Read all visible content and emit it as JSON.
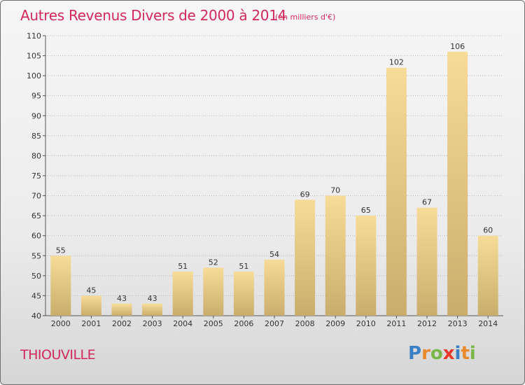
{
  "title": "Autres Revenus Divers de 2000 à 2014",
  "subtitle": "(en milliers d'€)",
  "commune": "THIOUVILLE",
  "logo": {
    "text": "Proxiti",
    "letters": [
      {
        "char": "P",
        "color": "#3b7fc4"
      },
      {
        "char": "r",
        "color": "#e8892b"
      },
      {
        "char": "o",
        "color": "#7ab648"
      },
      {
        "char": "x",
        "color": "#e8392b"
      },
      {
        "char": "i",
        "color": "#3b7fc4"
      },
      {
        "char": "t",
        "color": "#e8892b"
      },
      {
        "char": "i",
        "color": "#7ab648"
      }
    ]
  },
  "colors": {
    "title": "#d2285b",
    "bar_light": "#f6dc98",
    "bar_dark": "#c9ad6c",
    "grid": "#b9b9b9"
  },
  "chart_data": {
    "type": "bar",
    "title": "Autres Revenus Divers de 2000 à 2014",
    "subtitle": "(en milliers d'€)",
    "categories": [
      "2000",
      "2001",
      "2002",
      "2003",
      "2004",
      "2005",
      "2006",
      "2007",
      "2008",
      "2009",
      "2010",
      "2011",
      "2012",
      "2013",
      "2014"
    ],
    "values": [
      55,
      45,
      43,
      43,
      51,
      52,
      51,
      54,
      69,
      70,
      65,
      102,
      67,
      106,
      60
    ],
    "ylim": [
      40,
      110
    ],
    "yticks": [
      40,
      45,
      50,
      55,
      60,
      65,
      70,
      75,
      80,
      85,
      90,
      95,
      100,
      105,
      110
    ],
    "grid": true,
    "legend": "none"
  }
}
